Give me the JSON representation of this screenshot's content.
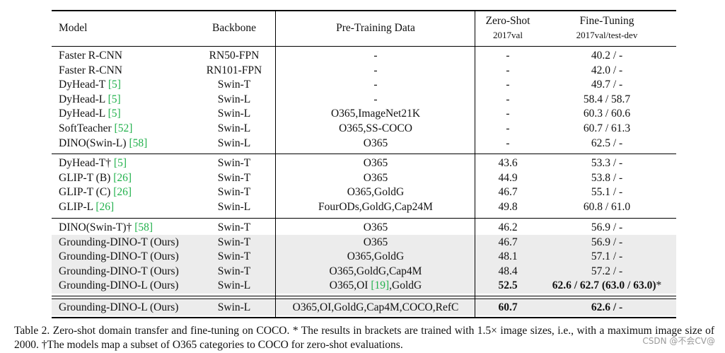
{
  "header": {
    "model": "Model",
    "backbone": "Backbone",
    "pretraining": "Pre-Training Data",
    "zeroshot": "Zero-Shot",
    "zeroshot_sub": "2017val",
    "finetuning": "Fine-Tuning",
    "finetuning_sub": "2017val/test-dev"
  },
  "groups": [
    {
      "rows": [
        {
          "model": "Faster R-CNN",
          "cite": "",
          "backbone": "RN50-FPN",
          "data": "-",
          "zs": "-",
          "ft": "40.2 / -"
        },
        {
          "model": "Faster R-CNN",
          "cite": "",
          "backbone": "RN101-FPN",
          "data": "-",
          "zs": "-",
          "ft": "42.0 / -"
        },
        {
          "model": "DyHead-T ",
          "cite": "[5]",
          "backbone": "Swin-T",
          "data": "-",
          "zs": "-",
          "ft": "49.7 / -"
        },
        {
          "model": "DyHead-L ",
          "cite": "[5]",
          "backbone": "Swin-L",
          "data": "-",
          "zs": "-",
          "ft": "58.4 / 58.7"
        },
        {
          "model": "DyHead-L ",
          "cite": "[5]",
          "backbone": "Swin-L",
          "data": "O365,ImageNet21K",
          "zs": "-",
          "ft": "60.3 / 60.6"
        },
        {
          "model": "SoftTeacher ",
          "cite": "[52]",
          "backbone": "Swin-L",
          "data": "O365,SS-COCO",
          "zs": "-",
          "ft": "60.7 / 61.3"
        },
        {
          "model": "DINO(Swin-L) ",
          "cite": "[58]",
          "backbone": "Swin-L",
          "data": "O365",
          "zs": "-",
          "ft": "62.5 / -"
        }
      ]
    },
    {
      "rows": [
        {
          "model": "DyHead-T† ",
          "cite": "[5]",
          "backbone": "Swin-T",
          "data": "O365",
          "zs": "43.6",
          "ft": "53.3 / -"
        },
        {
          "model": "GLIP-T (B) ",
          "cite": "[26]",
          "backbone": "Swin-T",
          "data": "O365",
          "zs": "44.9",
          "ft": "53.8 / -"
        },
        {
          "model": "GLIP-T (C) ",
          "cite": "[26]",
          "backbone": "Swin-T",
          "data": "O365,GoldG",
          "zs": "46.7",
          "ft": "55.1 / -"
        },
        {
          "model": "GLIP-L ",
          "cite": "[26]",
          "backbone": "Swin-L",
          "data": "FourODs,GoldG,Cap24M",
          "zs": "49.8",
          "ft": "60.8 / 61.0"
        }
      ]
    },
    {
      "rows": [
        {
          "model": "DINO(Swin-T)† ",
          "cite": "[58]",
          "backbone": "Swin-T",
          "data": "O365",
          "zs": "46.2",
          "ft": "56.9 / -"
        },
        {
          "model": "Grounding-DINO-T (Ours)",
          "cite": "",
          "backbone": "Swin-T",
          "data": "O365",
          "zs": "46.7",
          "ft": "56.9 / -",
          "shaded": true
        },
        {
          "model": "Grounding-DINO-T (Ours)",
          "cite": "",
          "backbone": "Swin-T",
          "data": "O365,GoldG",
          "zs": "48.1",
          "ft": "57.1 / -",
          "shaded": true
        },
        {
          "model": "Grounding-DINO-T (Ours)",
          "cite": "",
          "backbone": "Swin-T",
          "data": "O365,GoldG,Cap4M",
          "zs": "48.4",
          "ft": "57.2 / -",
          "shaded": true
        },
        {
          "model": "Grounding-DINO-L (Ours)",
          "cite": "",
          "backbone": "Swin-L",
          "data_pre": "O365,OI ",
          "data_cite": "[19]",
          "data_post": ",GoldG",
          "zs": "52.5",
          "zs_bold": true,
          "ft_bold": "62.6 / 62.7 (63.0 / 63.0)",
          "ft_post": "*",
          "shaded": true
        }
      ]
    },
    {
      "rows": [
        {
          "model": "Grounding-DINO-L (Ours)",
          "cite": "",
          "backbone": "Swin-L",
          "data": "O365,OI,GoldG,Cap4M,COCO,RefC",
          "zs": "60.7",
          "zs_bold": true,
          "ft": "62.6 / -",
          "ft_bold_all": true,
          "shaded": true
        }
      ]
    }
  ],
  "caption": "Table 2. Zero-shot domain transfer and fine-tuning on COCO. * The results in brackets are trained with 1.5× image sizes, i.e., with a maximum image size of 2000. †The models map a subset of O365 categories to COCO for zero-shot evaluations.",
  "watermark": "CSDN @不会CV@"
}
